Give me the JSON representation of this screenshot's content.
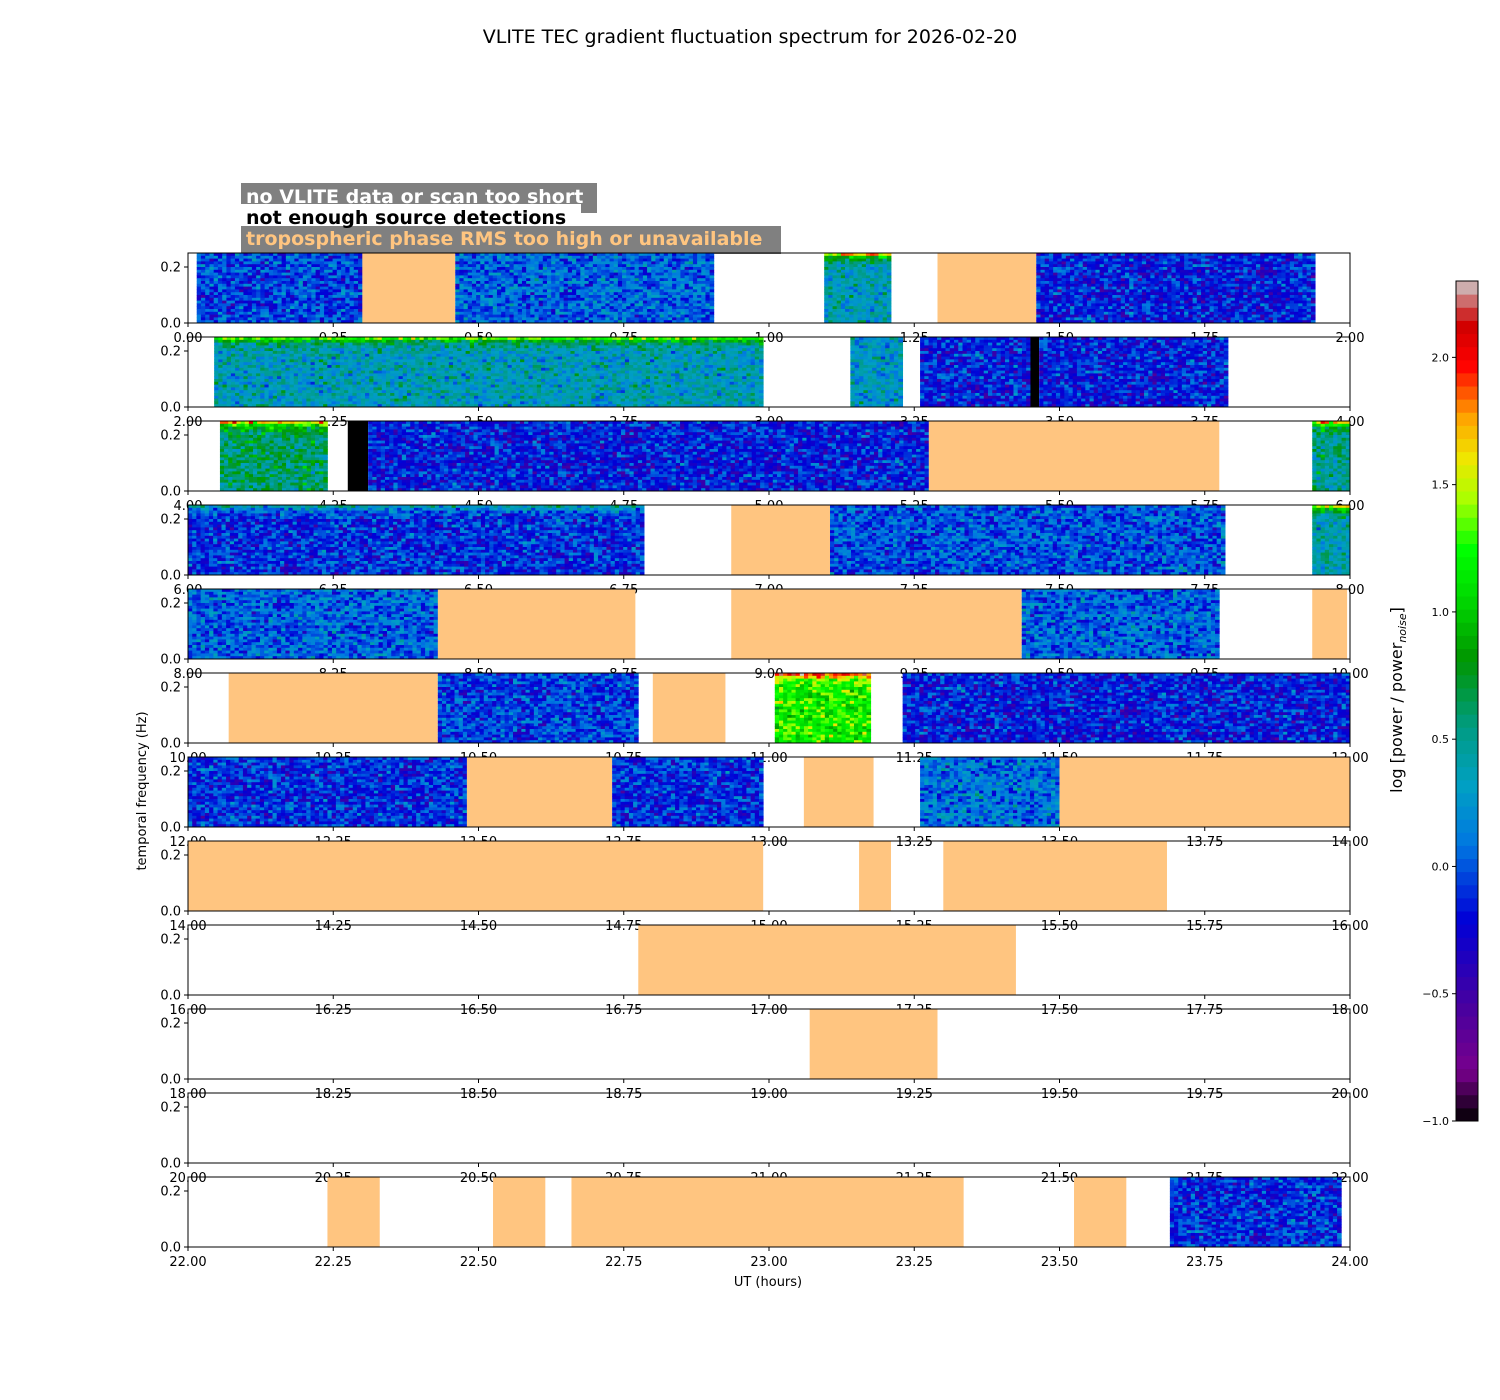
{
  "chart_data": {
    "type": "heatmap",
    "title": "VLITE TEC gradient fluctuation spectrum for 2026-02-20",
    "xlabel": "UT (hours)",
    "ylabel": "temporal frequency (Hz)",
    "y_ticks": [
      "0.0",
      "0.2"
    ],
    "ylim": [
      0,
      0.25
    ],
    "colorbar": {
      "label": "log [power / power",
      "label_sub": "noise",
      "label_end": "]",
      "range": [
        -1.0,
        2.3
      ],
      "ticks": [
        {
          "value": -1.0,
          "label": "−1.0"
        },
        {
          "value": -0.5,
          "label": "−0.5"
        },
        {
          "value": 0.0,
          "label": "0.0"
        },
        {
          "value": 0.5,
          "label": "0.5"
        },
        {
          "value": 1.0,
          "label": "1.0"
        },
        {
          "value": 1.5,
          "label": "1.5"
        },
        {
          "value": 2.0,
          "label": "2.0"
        }
      ]
    },
    "legend": {
      "placement": "top-left",
      "entries": [
        {
          "text": "no VLITE data or scan too short",
          "color": "#ffffff"
        },
        {
          "text": "not enough source detections",
          "color": "#000000"
        },
        {
          "text": "tropospheric phase RMS too high or unavailable",
          "color": "#ffc580"
        }
      ]
    },
    "colors": {
      "trop_flag": "#ffc580",
      "detect_flag": "#000000",
      "legend_bg": "#808080"
    },
    "panels": [
      {
        "xlim": [
          0,
          2
        ],
        "x_ticks": [
          "0.00",
          "0.25",
          "0.50",
          "0.75",
          "1.00",
          "1.25",
          "1.50",
          "1.75",
          "2.00"
        ],
        "segments": [
          {
            "start": 0.015,
            "end": 0.3,
            "kind": "data",
            "level": -0.05
          },
          {
            "start": 0.3,
            "end": 0.46,
            "kind": "trop"
          },
          {
            "start": 0.46,
            "end": 0.905,
            "kind": "data",
            "level": 0.05
          },
          {
            "start": 1.095,
            "end": 1.21,
            "kind": "data",
            "level": 0.35,
            "low_boost": 1.3
          },
          {
            "start": 1.29,
            "end": 1.46,
            "kind": "trop"
          },
          {
            "start": 1.46,
            "end": 1.94,
            "kind": "data",
            "level": -0.15
          }
        ]
      },
      {
        "xlim": [
          2,
          4
        ],
        "x_ticks": [
          "2.00",
          "2.25",
          "2.50",
          "2.75",
          "3.00",
          "3.25",
          "3.50",
          "3.75",
          "4.00"
        ],
        "segments": [
          {
            "start": 2.045,
            "end": 2.99,
            "kind": "data",
            "level": 0.35,
            "low_boost": 0.9
          },
          {
            "start": 3.14,
            "end": 3.23,
            "kind": "data",
            "level": 0.3
          },
          {
            "start": 3.26,
            "end": 3.45,
            "kind": "data",
            "level": -0.15
          },
          {
            "start": 3.45,
            "end": 3.465,
            "kind": "detect"
          },
          {
            "start": 3.465,
            "end": 3.79,
            "kind": "data",
            "level": -0.15
          }
        ]
      },
      {
        "xlim": [
          4,
          6
        ],
        "x_ticks": [
          "4.00",
          "4.25",
          "4.50",
          "4.75",
          "5.00",
          "5.25",
          "5.50",
          "5.75",
          "6.00"
        ],
        "segments": [
          {
            "start": 4.055,
            "end": 4.24,
            "kind": "data",
            "level": 0.6,
            "low_boost": 1.1
          },
          {
            "start": 4.275,
            "end": 4.31,
            "kind": "detect"
          },
          {
            "start": 4.31,
            "end": 5.275,
            "kind": "data",
            "level": -0.15
          },
          {
            "start": 5.275,
            "end": 5.775,
            "kind": "trop"
          },
          {
            "start": 5.935,
            "end": 6.0,
            "kind": "data",
            "level": 0.5,
            "low_boost": 1.2
          }
        ]
      },
      {
        "xlim": [
          6,
          8
        ],
        "x_ticks": [
          "6.00",
          "6.25",
          "6.50",
          "6.75",
          "7.00",
          "7.25",
          "7.50",
          "7.75",
          "8.00"
        ],
        "segments": [
          {
            "start": 6.0,
            "end": 6.785,
            "kind": "data",
            "level": -0.1,
            "low_boost": 0.5
          },
          {
            "start": 6.935,
            "end": 7.105,
            "kind": "trop"
          },
          {
            "start": 7.105,
            "end": 7.785,
            "kind": "data",
            "level": 0.0
          },
          {
            "start": 7.935,
            "end": 8.0,
            "kind": "data",
            "level": 0.4,
            "low_boost": 1.2
          }
        ]
      },
      {
        "xlim": [
          8,
          10
        ],
        "x_ticks": [
          "8.00",
          "8.25",
          "8.50",
          "8.75",
          "9.00",
          "9.25",
          "9.50",
          "9.75",
          "10.00"
        ],
        "segments": [
          {
            "start": 8.0,
            "end": 8.43,
            "kind": "data",
            "level": 0.05
          },
          {
            "start": 8.43,
            "end": 8.77,
            "kind": "trop"
          },
          {
            "start": 8.935,
            "end": 9.435,
            "kind": "trop"
          },
          {
            "start": 9.435,
            "end": 9.775,
            "kind": "data",
            "level": 0.05
          },
          {
            "start": 9.935,
            "end": 9.995,
            "kind": "trop"
          }
        ]
      },
      {
        "xlim": [
          10,
          12
        ],
        "x_ticks": [
          "10.00",
          "10.25",
          "10.50",
          "10.75",
          "11.00",
          "11.25",
          "11.50",
          "11.75",
          "12.00"
        ],
        "segments": [
          {
            "start": 10.07,
            "end": 10.43,
            "kind": "trop"
          },
          {
            "start": 10.43,
            "end": 10.775,
            "kind": "data",
            "level": -0.05
          },
          {
            "start": 10.8,
            "end": 10.925,
            "kind": "trop"
          },
          {
            "start": 11.01,
            "end": 11.175,
            "kind": "data",
            "level": 1.2,
            "low_boost": 0.8
          },
          {
            "start": 11.23,
            "end": 12.0,
            "kind": "data",
            "level": -0.15
          }
        ]
      },
      {
        "xlim": [
          12,
          14
        ],
        "x_ticks": [
          "12.00",
          "12.25",
          "12.50",
          "12.75",
          "13.00",
          "13.25",
          "13.50",
          "13.75",
          "14.00"
        ],
        "segments": [
          {
            "start": 12.0,
            "end": 12.48,
            "kind": "data",
            "level": -0.1
          },
          {
            "start": 12.48,
            "end": 12.73,
            "kind": "trop"
          },
          {
            "start": 12.73,
            "end": 12.99,
            "kind": "data",
            "level": -0.1
          },
          {
            "start": 13.06,
            "end": 13.18,
            "kind": "trop"
          },
          {
            "start": 13.26,
            "end": 13.5,
            "kind": "data",
            "level": 0.1
          },
          {
            "start": 13.5,
            "end": 14.0,
            "kind": "trop"
          }
        ]
      },
      {
        "xlim": [
          14,
          16
        ],
        "x_ticks": [
          "14.00",
          "14.25",
          "14.50",
          "14.75",
          "15.00",
          "15.25",
          "15.50",
          "15.75",
          "16.00"
        ],
        "segments": [
          {
            "start": 14.0,
            "end": 14.99,
            "kind": "trop"
          },
          {
            "start": 15.155,
            "end": 15.21,
            "kind": "trop"
          },
          {
            "start": 15.3,
            "end": 15.685,
            "kind": "trop"
          }
        ]
      },
      {
        "xlim": [
          16,
          18
        ],
        "x_ticks": [
          "16.00",
          "16.25",
          "16.50",
          "16.75",
          "17.00",
          "17.25",
          "17.50",
          "17.75",
          "18.00"
        ],
        "segments": [
          {
            "start": 16.775,
            "end": 17.425,
            "kind": "trop"
          }
        ]
      },
      {
        "xlim": [
          18,
          20
        ],
        "x_ticks": [
          "18.00",
          "18.25",
          "18.50",
          "18.75",
          "19.00",
          "19.25",
          "19.50",
          "19.75",
          "20.00"
        ],
        "segments": [
          {
            "start": 19.07,
            "end": 19.29,
            "kind": "trop"
          }
        ]
      },
      {
        "xlim": [
          20,
          22
        ],
        "x_ticks": [
          "20.00",
          "20.25",
          "20.50",
          "20.75",
          "21.00",
          "21.25",
          "21.50",
          "21.75",
          "22.00"
        ],
        "segments": []
      },
      {
        "xlim": [
          22,
          24
        ],
        "x_ticks": [
          "22.00",
          "22.25",
          "22.50",
          "22.75",
          "23.00",
          "23.25",
          "23.50",
          "23.75",
          "24.00"
        ],
        "segments": [
          {
            "start": 22.24,
            "end": 22.33,
            "kind": "trop"
          },
          {
            "start": 22.525,
            "end": 22.615,
            "kind": "trop"
          },
          {
            "start": 22.66,
            "end": 23.335,
            "kind": "trop"
          },
          {
            "start": 23.525,
            "end": 23.615,
            "kind": "trop"
          },
          {
            "start": 23.69,
            "end": 23.985,
            "kind": "data",
            "level": -0.1
          }
        ]
      }
    ]
  }
}
